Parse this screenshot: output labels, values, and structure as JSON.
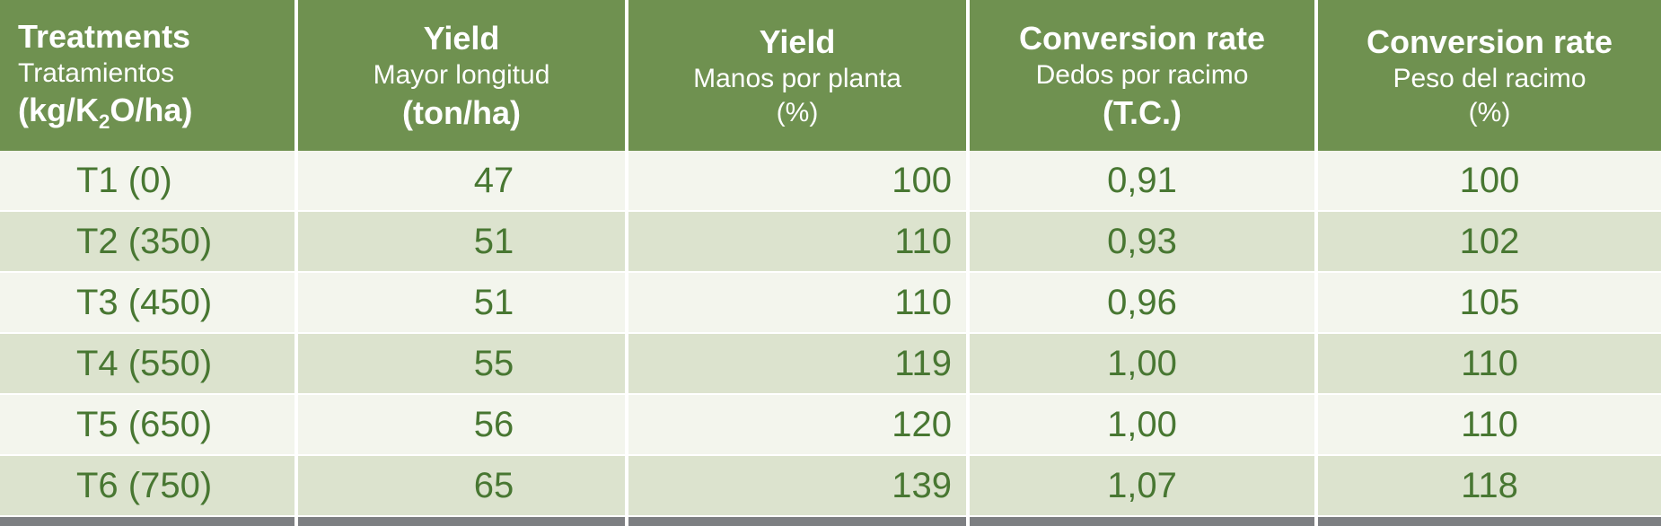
{
  "table": {
    "header": {
      "columns": [
        {
          "title": "Treatments",
          "subtitle": "Tratamientos",
          "unit_pre": "(kg/K",
          "unit_sub": "2",
          "unit_post": "O/ha)",
          "unit_bold": true
        },
        {
          "title": "Yield",
          "subtitle": "Mayor longitud",
          "unit": "(ton/ha)",
          "unit_bold": true
        },
        {
          "title": "Yield",
          "subtitle": "Manos por planta",
          "unit": "(%)",
          "unit_bold": false
        },
        {
          "title": "Conversion rate",
          "subtitle": "Dedos por racimo",
          "unit": "(T.C.)",
          "unit_bold": true
        },
        {
          "title": "Conversion rate",
          "subtitle": "Peso del racimo",
          "unit": "(%)",
          "unit_bold": false
        }
      ]
    },
    "rows": [
      [
        "T1 (0)",
        "47",
        "100",
        "0,91",
        "100"
      ],
      [
        "T2 (350)",
        "51",
        "110",
        "0,93",
        "102"
      ],
      [
        "T3 (450)",
        "51",
        "110",
        "0,96",
        "105"
      ],
      [
        "T4 (550)",
        "55",
        "119",
        "1,00",
        "110"
      ],
      [
        "T5 (650)",
        "56",
        "120",
        "1,00",
        "110"
      ],
      [
        "T6 (750)",
        "65",
        "139",
        "1,07",
        "118"
      ]
    ]
  },
  "colors": {
    "header_bg": "#6F9150",
    "header_text": "#FFFFFF",
    "row_light": "#F3F5ED",
    "row_alt": "#DCE3CE",
    "body_text": "#487732",
    "divider": "#FFFFFF",
    "footer_bar": "#7D7F82"
  },
  "chart_data": {
    "type": "table",
    "columns": [
      "Treatments Tratamientos (kg/K2O/ha)",
      "Yield Mayor longitud (ton/ha)",
      "Yield Manos por planta (%)",
      "Conversion rate Dedos por racimo (T.C.)",
      "Conversion rate Peso del racimo (%)"
    ],
    "rows": [
      [
        "T1 (0)",
        47,
        100,
        0.91,
        100
      ],
      [
        "T2 (350)",
        51,
        110,
        0.93,
        102
      ],
      [
        "T3 (450)",
        51,
        110,
        0.96,
        105
      ],
      [
        "T4 (550)",
        55,
        119,
        1.0,
        110
      ],
      [
        "T5 (650)",
        56,
        120,
        1.0,
        110
      ],
      [
        "T6 (750)",
        65,
        139,
        1.07,
        118
      ]
    ]
  }
}
